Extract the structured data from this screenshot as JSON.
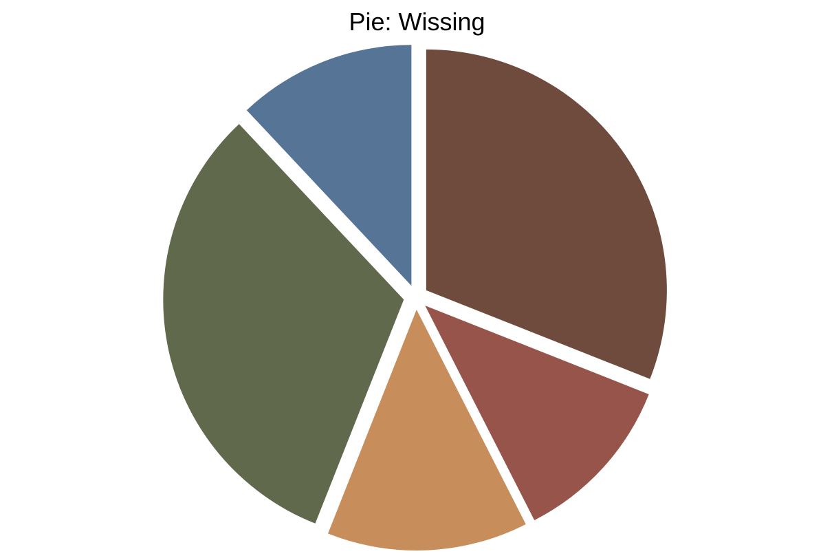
{
  "chart_data": {
    "type": "pie",
    "title": "Pie: Wissing",
    "legend": "none",
    "slices": [
      {
        "value": 31.0,
        "color": "#6f4b3e"
      },
      {
        "value": 11.5,
        "color": "#96544a"
      },
      {
        "value": 13.5,
        "color": "#c78d5b"
      },
      {
        "value": 32.0,
        "color": "#60694c"
      },
      {
        "value": 12.0,
        "color": "#557496"
      }
    ],
    "start_angle_deg": 90,
    "direction": "clockwise",
    "exploded": true
  }
}
